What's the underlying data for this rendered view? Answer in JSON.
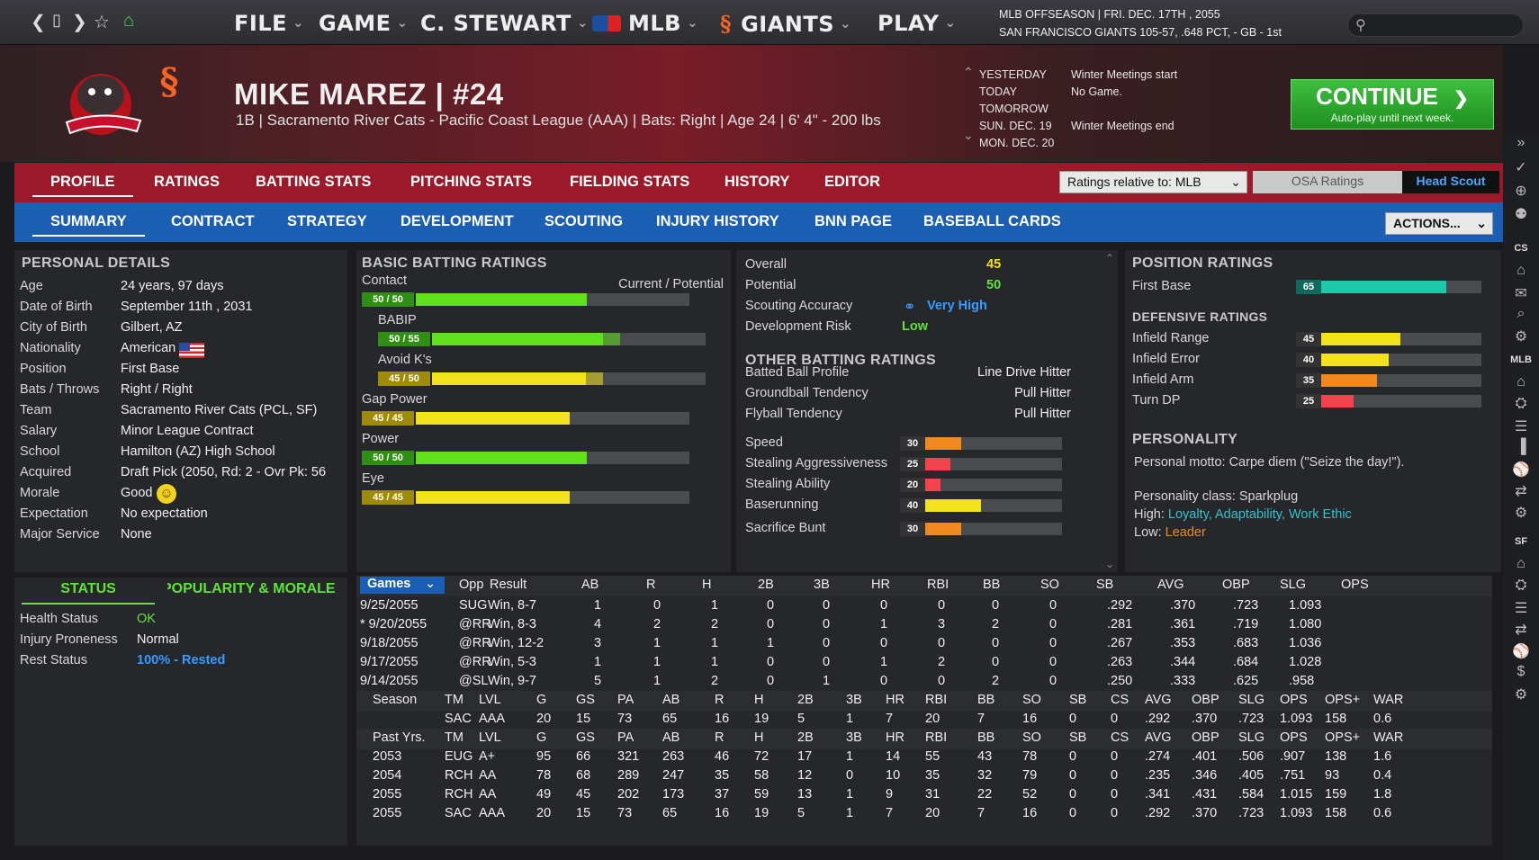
{
  "topbar": {
    "menus": [
      "FILE",
      "GAME",
      "C. STEWART",
      "MLB",
      "GIANTS",
      "PLAY"
    ],
    "info_line1": "MLB OFFSEASON  |  FRI. DEC. 17TH , 2055",
    "info_line2": "SAN FRANCISCO GIANTS  105-57, .648 PCT, - GB - 1st"
  },
  "player": {
    "name": "MIKE MAREZ  |  #24",
    "info": "1B | Sacramento River Cats - Pacific Coast League (AAA)  |  Bats: Right  |  Age 24  |  6' 4\"  - 200 lbs"
  },
  "schedule": [
    {
      "day": "YESTERDAY",
      "event": "Winter Meetings start"
    },
    {
      "day": "TODAY",
      "event": "No Game."
    },
    {
      "day": "TOMORROW",
      "event": ""
    },
    {
      "day": "SUN. DEC. 19",
      "event": "Winter Meetings end"
    },
    {
      "day": "MON. DEC. 20",
      "event": ""
    }
  ],
  "continue": {
    "label": "CONTINUE",
    "sub": "Auto-play until next week."
  },
  "tabs1": [
    "PROFILE",
    "RATINGS",
    "BATTING STATS",
    "PITCHING STATS",
    "FIELDING STATS",
    "HISTORY",
    "EDITOR"
  ],
  "tabs2": [
    "SUMMARY",
    "CONTRACT",
    "STRATEGY",
    "DEVELOPMENT",
    "SCOUTING",
    "INJURY HISTORY",
    "BNN PAGE",
    "BASEBALL CARDS"
  ],
  "controls": {
    "ratings_relative": "Ratings relative to: MLB",
    "osa": "OSA Ratings",
    "scout": "Head Scout",
    "actions": "ACTIONS..."
  },
  "personal": {
    "title": "PERSONAL DETAILS",
    "rows": [
      [
        "Age",
        "24 years, 97 days"
      ],
      [
        "Date of Birth",
        "September 11th , 2031"
      ],
      [
        "City of Birth",
        "Gilbert, AZ"
      ],
      [
        "Nationality",
        "American"
      ],
      [
        "Position",
        "First Base"
      ],
      [
        "Bats / Throws",
        "Right / Right"
      ],
      [
        "Team",
        "Sacramento River Cats (PCL, SF)"
      ],
      [
        "Salary",
        "Minor League Contract"
      ],
      [
        "School",
        "Hamilton (AZ) High School"
      ],
      [
        "Acquired",
        "Draft Pick (2050, Rd: 2 - Ovr Pk: 56"
      ],
      [
        "Morale",
        "Good"
      ],
      [
        "Expectation",
        "No expectation"
      ],
      [
        "Major Service",
        "None"
      ]
    ]
  },
  "status": {
    "tab1": "STATUS",
    "tab2": "POPULARITY & MORALE",
    "rows": [
      [
        "Health Status",
        "OK"
      ],
      [
        "Injury Proneness",
        "Normal"
      ],
      [
        "Rest Status",
        "100% - Rested"
      ]
    ]
  },
  "batting": {
    "title": "BASIC BATTING RATINGS",
    "col_header": "Current / Potential",
    "items": [
      {
        "label": "Contact",
        "badge": "50 / 50",
        "cur": 50,
        "pot": 50,
        "color": "#5fe21b"
      },
      {
        "label": "BABIP",
        "badge": "50 / 55",
        "cur": 50,
        "pot": 55,
        "color": "#5fe21b"
      },
      {
        "label": "Avoid K's",
        "badge": "45 / 50",
        "cur": 45,
        "pot": 50,
        "color": "#f3e11b"
      },
      {
        "label": "Gap Power",
        "badge": "45 / 45",
        "cur": 45,
        "pot": 45,
        "color": "#f3e11b"
      },
      {
        "label": "Power",
        "badge": "50 / 50",
        "cur": 50,
        "pot": 50,
        "color": "#5fe21b"
      },
      {
        "label": "Eye",
        "badge": "45 / 45",
        "cur": 45,
        "pot": 45,
        "color": "#f3e11b"
      }
    ]
  },
  "overall": {
    "rows": [
      [
        "Overall",
        "45"
      ],
      [
        "Potential",
        "50"
      ],
      [
        "Scouting Accuracy",
        "Very High"
      ],
      [
        "Development Risk",
        "Low"
      ]
    ],
    "other_title": "OTHER BATTING RATINGS",
    "other": [
      [
        "Batted Ball Profile",
        "Line Drive Hitter"
      ],
      [
        "Groundball Tendency",
        "Pull Hitter"
      ],
      [
        "Flyball Tendency",
        "Pull Hitter"
      ]
    ],
    "speed": [
      {
        "label": "Speed",
        "value": 30,
        "color": "#f08a1f"
      },
      {
        "label": "Stealing Aggressiveness",
        "value": 25,
        "color": "#f2434f"
      },
      {
        "label": "Stealing Ability",
        "value": 20,
        "color": "#f2434f"
      },
      {
        "label": "Baserunning",
        "value": 40,
        "color": "#f3e11b"
      },
      {
        "label": "Sacrifice Bunt",
        "value": 30,
        "color": "#f08a1f"
      }
    ]
  },
  "position": {
    "title": "POSITION RATINGS",
    "first_base": {
      "label": "First Base",
      "value": 65,
      "color": "#1ec8a8"
    },
    "def_title": "DEFENSIVE RATINGS",
    "def": [
      {
        "label": "Infield Range",
        "value": 45,
        "color": "#f3e11b"
      },
      {
        "label": "Infield Error",
        "value": 40,
        "color": "#f3e11b"
      },
      {
        "label": "Infield Arm",
        "value": 35,
        "color": "#f08a1f"
      },
      {
        "label": "Turn DP",
        "value": 25,
        "color": "#f2434f"
      }
    ],
    "pers_title": "PERSONALITY",
    "motto": "Personal motto: Carpe diem (\"Seize the day!\").",
    "class": "Personality class: Sparkplug",
    "high_label": "High:",
    "high": "Loyalty, Adaptability, Work Ethic",
    "low_label": "Low:",
    "low": "Leader"
  },
  "games": {
    "select": "Games",
    "headers": [
      "Opp",
      "Result",
      "AB",
      "R",
      "H",
      "2B",
      "3B",
      "HR",
      "RBI",
      "BB",
      "SO",
      "SB",
      "AVG",
      "OBP",
      "SLG",
      "OPS"
    ],
    "rows": [
      [
        "9/25/2055",
        "SUG",
        "Win, 8-7",
        "1",
        "0",
        "1",
        "0",
        "0",
        "0",
        "0",
        "0",
        "0",
        ".292",
        ".370",
        ".723",
        "1.093"
      ],
      [
        "* 9/20/2055",
        "@RR",
        "Win, 8-3",
        "4",
        "2",
        "2",
        "0",
        "0",
        "1",
        "3",
        "0",
        "2",
        "0",
        ".281",
        ".361",
        ".719",
        "1.080"
      ],
      [
        "9/18/2055",
        "@RR",
        "Win, 12-2",
        "3",
        "1",
        "1",
        "1",
        "0",
        "0",
        "0",
        "1",
        "0",
        "0",
        ".267",
        ".353",
        ".683",
        "1.036"
      ],
      [
        "9/17/2055",
        "@RR",
        "Win, 5-3",
        "1",
        "1",
        "1",
        "0",
        "0",
        "1",
        "2",
        "0",
        "0",
        "0",
        ".263",
        ".344",
        ".684",
        "1.028"
      ],
      [
        "9/14/2055",
        "@SL",
        "Win, 9-7",
        "5",
        "1",
        "2",
        "0",
        "1",
        "0",
        "0",
        "0",
        "2",
        "0",
        ".250",
        ".333",
        ".625",
        ".958"
      ]
    ],
    "season_headers": [
      "Season",
      "TM",
      "LVL",
      "G",
      "GS",
      "PA",
      "AB",
      "R",
      "H",
      "2B",
      "3B",
      "HR",
      "RBI",
      "BB",
      "SO",
      "SB",
      "CS",
      "AVG",
      "OBP",
      "SLG",
      "OPS",
      "OPS+",
      "WAR"
    ],
    "season_row": [
      "",
      "SAC",
      "AAA",
      "20",
      "15",
      "73",
      "65",
      "16",
      "19",
      "5",
      "1",
      "7",
      "20",
      "7",
      "16",
      "0",
      "0",
      ".292",
      ".370",
      ".723",
      "1.093",
      "158",
      "0.6"
    ],
    "past_headers": [
      "Past Yrs.",
      "TM",
      "LVL",
      "G",
      "GS",
      "PA",
      "AB",
      "R",
      "H",
      "2B",
      "3B",
      "HR",
      "RBI",
      "BB",
      "SO",
      "SB",
      "CS",
      "AVG",
      "OBP",
      "SLG",
      "OPS",
      "OPS+",
      "WAR"
    ],
    "past_rows": [
      [
        "2053",
        "EUG",
        "A+",
        "95",
        "66",
        "321",
        "263",
        "46",
        "72",
        "17",
        "1",
        "14",
        "55",
        "43",
        "78",
        "0",
        "0",
        ".274",
        ".401",
        ".506",
        ".907",
        "138",
        "1.6"
      ],
      [
        "2054",
        "RCH",
        "AA",
        "78",
        "68",
        "289",
        "247",
        "35",
        "58",
        "12",
        "0",
        "10",
        "35",
        "32",
        "79",
        "0",
        "0",
        ".235",
        ".346",
        ".405",
        ".751",
        "93",
        "0.4"
      ],
      [
        "2055",
        "RCH",
        "AA",
        "49",
        "45",
        "202",
        "173",
        "37",
        "59",
        "13",
        "1",
        "9",
        "31",
        "22",
        "52",
        "0",
        "0",
        ".341",
        ".431",
        ".584",
        "1.015",
        "159",
        "1.8"
      ],
      [
        "2055",
        "SAC",
        "AAA",
        "20",
        "15",
        "73",
        "65",
        "16",
        "19",
        "5",
        "1",
        "7",
        "20",
        "7",
        "16",
        "0",
        "0",
        ".292",
        ".370",
        ".723",
        "1.093",
        "158",
        "0.6"
      ]
    ]
  },
  "sidebar_labels": [
    "CS",
    "MLB",
    "SF"
  ]
}
